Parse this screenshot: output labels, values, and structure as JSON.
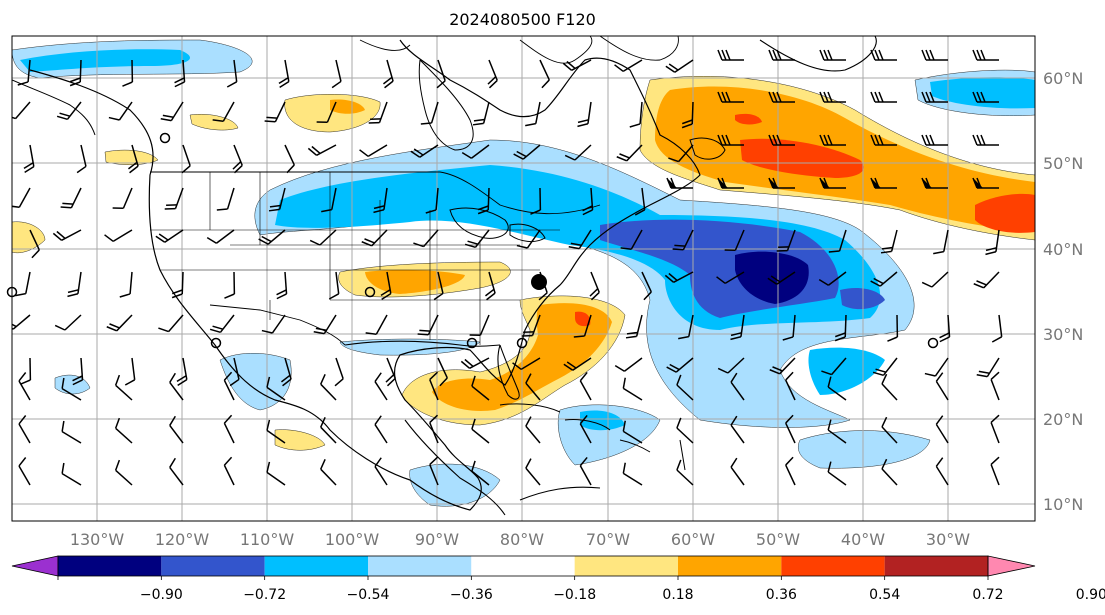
{
  "title": "2024080500 F120",
  "map": {
    "lat_ticks": [
      "60°N",
      "50°N",
      "40°N",
      "30°N",
      "20°N",
      "10°N"
    ],
    "lon_ticks": [
      "130°W",
      "120°W",
      "110°W",
      "100°W",
      "90°W",
      "80°W",
      "70°W",
      "60°W",
      "50°W",
      "40°W",
      "30°W"
    ],
    "gridlines": true,
    "marker": "filled-circle-point"
  },
  "colorbar": {
    "labels": [
      "−0.90",
      "−0.72",
      "−0.54",
      "−0.36",
      "−0.18",
      "0.18",
      "0.36",
      "0.54",
      "0.72",
      "0.90"
    ],
    "colors": [
      "#9b30d0",
      "#00007f",
      "#3355cc",
      "#00bfff",
      "#aadfff",
      "#ffffff",
      "#ffe680",
      "#ffa500",
      "#ff4000",
      "#b22222",
      "#ff88b0"
    ],
    "extend": "both"
  },
  "colors": {
    "coastline": "#000000",
    "grid": "#aaaaaa",
    "tick_text": "#777777"
  }
}
